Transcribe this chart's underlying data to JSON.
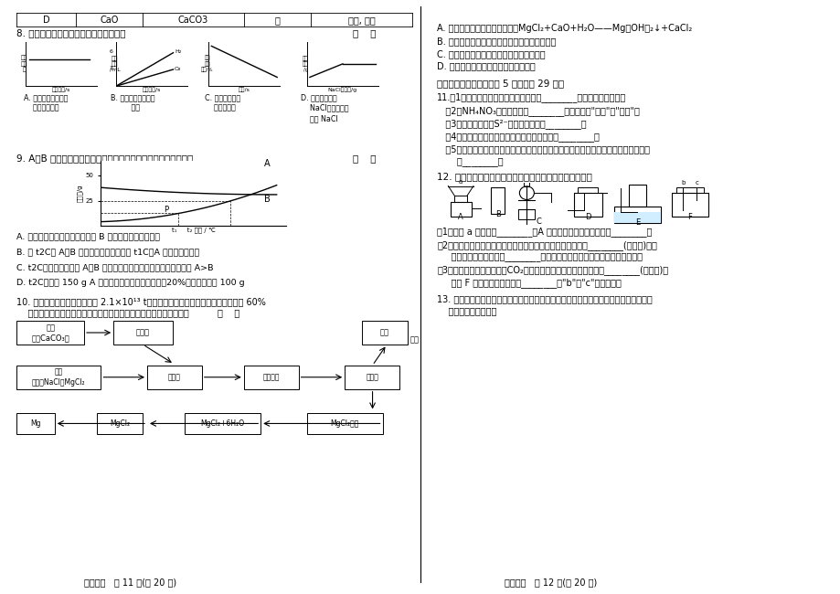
{
  "bg_color": "#ffffff",
  "left_page_num": "化学试卷   第 11 页(共 20 页)",
  "right_page_num": "化学试卷   第 12 页(共 20 页)",
  "table_cells": [
    "D",
    "CaO",
    "CaCO3",
    "水",
    "过滤, 烘干"
  ],
  "q9_options_text": [
    "A. 恒温蒸发溶剂的方法不可以使 B 得到饱和溶液析出晶体",
    "B. 将 t2C时 A、B 的饱和溶液分别降温至 t1C，A 成为不饱和溶液",
    "C. t2C时，用等质量的 A、B 分别配制成饱和溶液，所得溶液的质量 A>B",
    "D. t2C时，将 150 g A 的饱和溶液稀释成质量分数为20%的溶液，需水 100 g"
  ]
}
